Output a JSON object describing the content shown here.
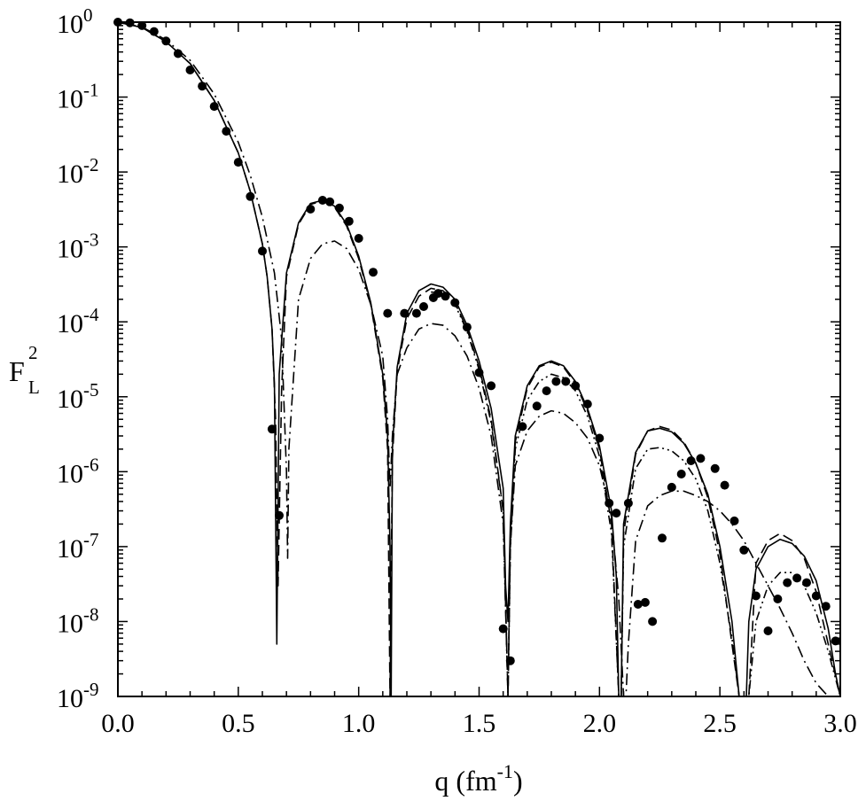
{
  "chart_data": {
    "type": "line",
    "x_axis": {
      "label_main": "q (fm",
      "label_sup": "-1",
      "label_close": ")",
      "range": [
        0.0,
        3.0
      ],
      "ticks": [
        0.0,
        0.5,
        1.0,
        1.5,
        2.0,
        2.5,
        3.0
      ],
      "tick_labels": [
        "0.0",
        "0.5",
        "1.0",
        "1.5",
        "2.0",
        "2.5",
        "3.0"
      ]
    },
    "y_axis": {
      "label_main": "F",
      "label_sub": "L",
      "label_sup": "2",
      "scale": "log",
      "range": [
        1e-09,
        1
      ],
      "ticks": [
        1e-09,
        1e-08,
        1e-07,
        1e-06,
        1e-05,
        0.0001,
        0.001,
        0.01,
        0.1,
        1
      ],
      "tick_base": "10",
      "tick_exponents": [
        "-9",
        "-8",
        "-7",
        "-6",
        "-5",
        "-4",
        "-3",
        "-2",
        "-1",
        "0"
      ]
    },
    "grid": false,
    "legend": "none",
    "series": [
      {
        "style": "solid",
        "color": "#000000",
        "x": [
          0,
          0.1,
          0.2,
          0.3,
          0.4,
          0.5,
          0.55,
          0.6,
          0.62,
          0.64,
          0.65,
          0.66,
          0.67,
          0.7,
          0.75,
          0.8,
          0.85,
          0.9,
          0.95,
          1.0,
          1.05,
          1.1,
          1.12,
          1.13,
          1.135,
          1.14,
          1.16,
          1.2,
          1.25,
          1.3,
          1.35,
          1.4,
          1.45,
          1.5,
          1.55,
          1.6,
          1.61,
          1.62,
          1.63,
          1.65,
          1.7,
          1.75,
          1.8,
          1.85,
          1.9,
          1.95,
          2.0,
          2.05,
          2.07,
          2.08,
          2.09,
          2.1,
          2.15,
          2.2,
          2.25,
          2.3,
          2.35,
          2.4,
          2.45,
          2.5,
          2.55,
          2.58,
          2.6,
          2.61,
          2.62,
          2.65,
          2.7,
          2.75,
          2.8,
          2.85,
          2.9,
          2.95,
          2.98,
          3.0
        ],
        "y": [
          1,
          0.85,
          0.55,
          0.28,
          0.09,
          0.018,
          0.0055,
          0.0011,
          0.0004,
          8e-05,
          1.5e-05,
          5e-09,
          2e-05,
          0.00045,
          0.0021,
          0.0038,
          0.0042,
          0.0035,
          0.002,
          0.00075,
          0.00018,
          2e-05,
          3e-06,
          1e-07,
          3e-10,
          2e-06,
          2.5e-05,
          0.00013,
          0.00026,
          0.00032,
          0.00029,
          0.0002,
          9e-05,
          3e-05,
          7e-06,
          6e-07,
          3e-08,
          1e-08,
          2e-07,
          3e-06,
          1.4e-05,
          2.6e-05,
          3e-05,
          2.6e-05,
          1.6e-05,
          7e-06,
          2.2e-06,
          3e-07,
          4e-08,
          1e-09,
          1e-09,
          2e-07,
          1.8e-06,
          3.5e-06,
          3.8e-06,
          3.4e-06,
          2.4e-06,
          1.3e-06,
          5e-07,
          1e-07,
          1e-08,
          1e-09,
          1e-09,
          1e-09,
          1e-08,
          5e-08,
          1e-07,
          1.25e-07,
          1.1e-07,
          7.5e-08,
          3.5e-08,
          8e-09,
          2e-09,
          1e-09
        ]
      },
      {
        "style": "dashed",
        "color": "#000000",
        "x": [
          0,
          0.1,
          0.2,
          0.3,
          0.4,
          0.5,
          0.55,
          0.6,
          0.62,
          0.64,
          0.655,
          0.665,
          0.68,
          0.7,
          0.75,
          0.8,
          0.85,
          0.9,
          0.95,
          1.0,
          1.05,
          1.1,
          1.12,
          1.13,
          1.14,
          1.16,
          1.2,
          1.25,
          1.3,
          1.35,
          1.4,
          1.45,
          1.5,
          1.55,
          1.6,
          1.62,
          1.63,
          1.65,
          1.7,
          1.75,
          1.8,
          1.85,
          1.9,
          1.95,
          2.0,
          2.05,
          2.08,
          2.09,
          2.1,
          2.15,
          2.2,
          2.25,
          2.3,
          2.35,
          2.4,
          2.45,
          2.5,
          2.55,
          2.58,
          2.6,
          2.62,
          2.65,
          2.7,
          2.75,
          2.8,
          2.85,
          2.9,
          2.95,
          3.0
        ],
        "y": [
          1,
          0.85,
          0.55,
          0.28,
          0.09,
          0.018,
          0.0055,
          0.0011,
          0.0004,
          8e-05,
          5e-06,
          3e-08,
          1.2e-05,
          0.0004,
          0.002,
          0.0037,
          0.0041,
          0.0034,
          0.0019,
          0.0007,
          0.00017,
          1.8e-05,
          2e-06,
          1e-09,
          1.5e-06,
          2.2e-05,
          0.00011,
          0.00022,
          0.00028,
          0.00026,
          0.00018,
          8e-05,
          2.5e-05,
          5e-06,
          3e-07,
          1e-09,
          1.5e-07,
          2.5e-06,
          1.3e-05,
          2.5e-05,
          2.9e-05,
          2.5e-05,
          1.5e-05,
          6.5e-06,
          2e-06,
          2e-07,
          1e-09,
          1e-09,
          1.5e-07,
          1.7e-06,
          3.5e-06,
          4e-06,
          3.6e-06,
          2.5e-06,
          1.3e-06,
          4.5e-07,
          8e-08,
          5e-09,
          1e-09,
          1e-09,
          1e-09,
          6e-08,
          1.2e-07,
          1.5e-07,
          1.2e-07,
          7e-08,
          2.5e-08,
          5e-09,
          1e-09
        ]
      },
      {
        "style": "dash-dot-dot",
        "color": "#000000",
        "x": [
          1.3,
          1.35,
          1.4,
          1.45,
          1.5,
          1.55,
          1.6,
          1.62,
          1.63,
          1.65,
          1.7,
          1.75,
          1.8,
          1.85,
          1.9,
          1.95,
          2.0,
          2.05,
          2.08,
          2.09,
          2.1,
          2.15,
          2.2,
          2.25,
          2.3,
          2.35,
          2.4,
          2.45,
          2.5,
          2.55,
          2.58,
          2.6,
          2.62,
          2.65,
          2.7,
          2.75,
          2.8,
          2.85,
          2.9,
          2.95,
          3.0
        ],
        "y": [
          0.00025,
          0.00024,
          0.00017,
          7.5e-05,
          2.3e-05,
          4.5e-06,
          3e-07,
          1e-09,
          1e-07,
          2e-06,
          9e-06,
          1.6e-05,
          2e-05,
          1.8e-05,
          1.2e-05,
          5.5e-06,
          1.6e-06,
          1.5e-07,
          1e-09,
          1e-09,
          1e-07,
          1.1e-06,
          2e-06,
          2.1e-06,
          1.9e-06,
          1.4e-06,
          8e-07,
          3e-07,
          6e-08,
          6e-09,
          1e-09,
          1e-09,
          1e-09,
          1e-08,
          3e-08,
          4.5e-08,
          4.5e-08,
          3e-08,
          1.3e-08,
          4e-09,
          1e-09
        ]
      },
      {
        "style": "dash-dot",
        "color": "#000000",
        "x": [
          0,
          0.1,
          0.2,
          0.3,
          0.4,
          0.5,
          0.55,
          0.6,
          0.65,
          0.68,
          0.7,
          0.705,
          0.71,
          0.75,
          0.8,
          0.85,
          0.9,
          0.95,
          1.0,
          1.05,
          1.1,
          1.12,
          1.13,
          1.14,
          1.16,
          1.2,
          1.25,
          1.3,
          1.35,
          1.4,
          1.45,
          1.5,
          1.55,
          1.6,
          1.62,
          1.63,
          1.65,
          1.7,
          1.75,
          1.8,
          1.85,
          1.9,
          1.95,
          2.0,
          2.05,
          2.08,
          2.1,
          2.11,
          2.12,
          2.15,
          2.2,
          2.25,
          2.3,
          2.35,
          2.4,
          2.45,
          2.5,
          2.55,
          2.6,
          2.65,
          2.7,
          2.75,
          2.8,
          2.85,
          2.9,
          2.95,
          3.0
        ],
        "y": [
          1,
          0.86,
          0.58,
          0.31,
          0.11,
          0.025,
          0.009,
          0.0025,
          0.00045,
          6e-05,
          1e-06,
          7e-08,
          2e-06,
          0.0002,
          0.0007,
          0.0011,
          0.0012,
          0.00095,
          0.0005,
          0.00017,
          3.5e-05,
          5e-06,
          6e-07,
          3e-06,
          2e-05,
          4.5e-05,
          8e-05,
          9.5e-05,
          9e-05,
          6.5e-05,
          3.5e-05,
          1.3e-05,
          3e-06,
          2e-07,
          1e-09,
          1e-07,
          1.2e-06,
          3.5e-06,
          5.5e-06,
          6.5e-06,
          6e-06,
          4.5e-06,
          2.8e-06,
          1.2e-06,
          2.5e-07,
          2e-08,
          1e-09,
          1e-09,
          5e-09,
          1.2e-07,
          3.5e-07,
          4.8e-07,
          5.5e-07,
          5.5e-07,
          4.8e-07,
          4e-07,
          3e-07,
          2e-07,
          1.2e-07,
          6e-08,
          3e-08,
          1.5e-08,
          7e-09,
          3e-09,
          1.5e-09,
          1e-09,
          1e-09
        ]
      },
      {
        "style": "markers",
        "color": "#000000",
        "x": [
          0.0,
          0.05,
          0.1,
          0.15,
          0.2,
          0.25,
          0.3,
          0.35,
          0.4,
          0.45,
          0.5,
          0.55,
          0.6,
          0.64,
          0.67,
          0.8,
          0.85,
          0.88,
          0.92,
          0.96,
          1.0,
          1.06,
          1.12,
          1.19,
          1.24,
          1.27,
          1.31,
          1.33,
          1.36,
          1.4,
          1.45,
          1.5,
          1.55,
          1.6,
          1.63,
          1.68,
          1.74,
          1.78,
          1.82,
          1.86,
          1.9,
          1.95,
          2.0,
          2.04,
          2.07,
          2.12,
          2.16,
          2.19,
          2.22,
          2.26,
          2.3,
          2.34,
          2.38,
          2.42,
          2.48,
          2.52,
          2.56,
          2.6,
          2.65,
          2.7,
          2.74,
          2.78,
          2.82,
          2.86,
          2.9,
          2.94,
          2.98
        ],
        "y": [
          1.0,
          0.98,
          0.9,
          0.75,
          0.56,
          0.38,
          0.23,
          0.14,
          0.075,
          0.035,
          0.0135,
          0.0047,
          0.00088,
          3.7e-06,
          2.6e-07,
          0.0032,
          0.0042,
          0.004,
          0.0033,
          0.0022,
          0.0013,
          0.00046,
          0.00013,
          0.00013,
          0.00013,
          0.00016,
          0.00021,
          0.00024,
          0.00022,
          0.00018,
          8.5e-05,
          2.1e-05,
          1.4e-05,
          8e-09,
          3e-09,
          4e-06,
          7.5e-06,
          1.2e-05,
          1.6e-05,
          1.6e-05,
          1.4e-05,
          8e-06,
          2.8e-06,
          3.8e-07,
          2.8e-07,
          3.8e-07,
          1.7e-08,
          1.8e-08,
          1e-08,
          1.3e-07,
          6.2e-07,
          9.3e-07,
          1.4e-06,
          1.5e-06,
          1.1e-06,
          6.6e-07,
          2.2e-07,
          9e-08,
          2.2e-08,
          7.5e-09,
          2e-08,
          3.3e-08,
          3.8e-08,
          3.3e-08,
          2.2e-08,
          1.6e-08,
          5.5e-09
        ]
      }
    ]
  }
}
